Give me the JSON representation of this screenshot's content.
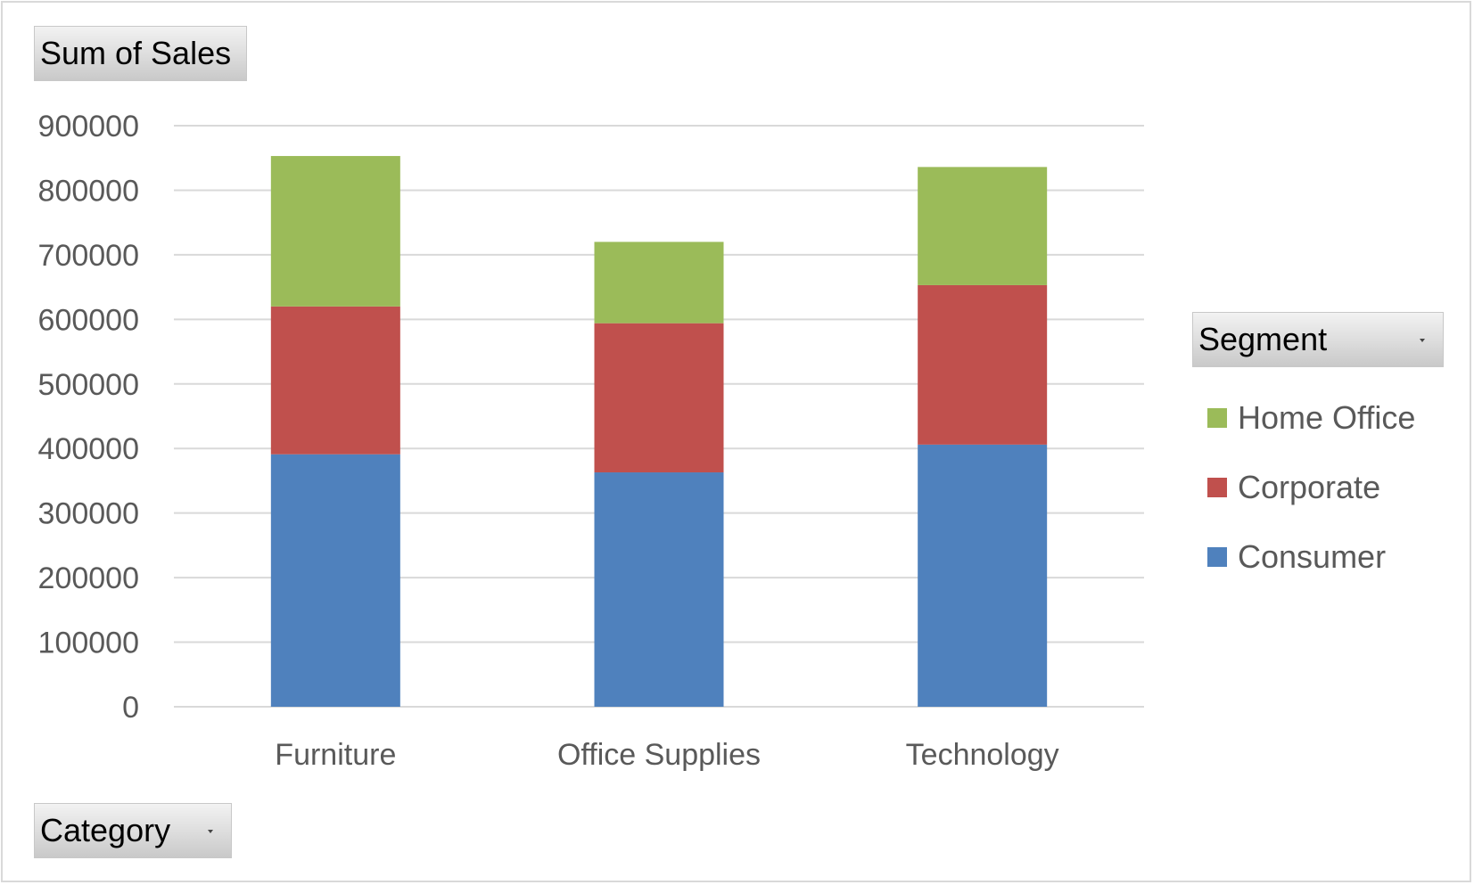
{
  "chart_data": {
    "type": "bar",
    "stacked": true,
    "title": "",
    "value_field_label": "Sum of Sales",
    "axis_field_label": "Category",
    "legend_field_label": "Segment",
    "categories": [
      "Furniture",
      "Office Supplies",
      "Technology"
    ],
    "series": [
      {
        "name": "Consumer",
        "color": "#4f81bd",
        "values": [
          391000,
          363000,
          406000
        ]
      },
      {
        "name": "Corporate",
        "color": "#c0504d",
        "values": [
          229000,
          231000,
          247000
        ]
      },
      {
        "name": "Home Office",
        "color": "#9bbb59",
        "values": [
          233000,
          126000,
          183000
        ]
      }
    ],
    "ylim": [
      0,
      900000
    ],
    "yticks": [
      "0",
      "100000",
      "200000",
      "300000",
      "400000",
      "500000",
      "600000",
      "700000",
      "800000",
      "900000"
    ],
    "grid": true,
    "legend_position": "right",
    "legend_order": [
      "Home Office",
      "Corporate",
      "Consumer"
    ]
  }
}
